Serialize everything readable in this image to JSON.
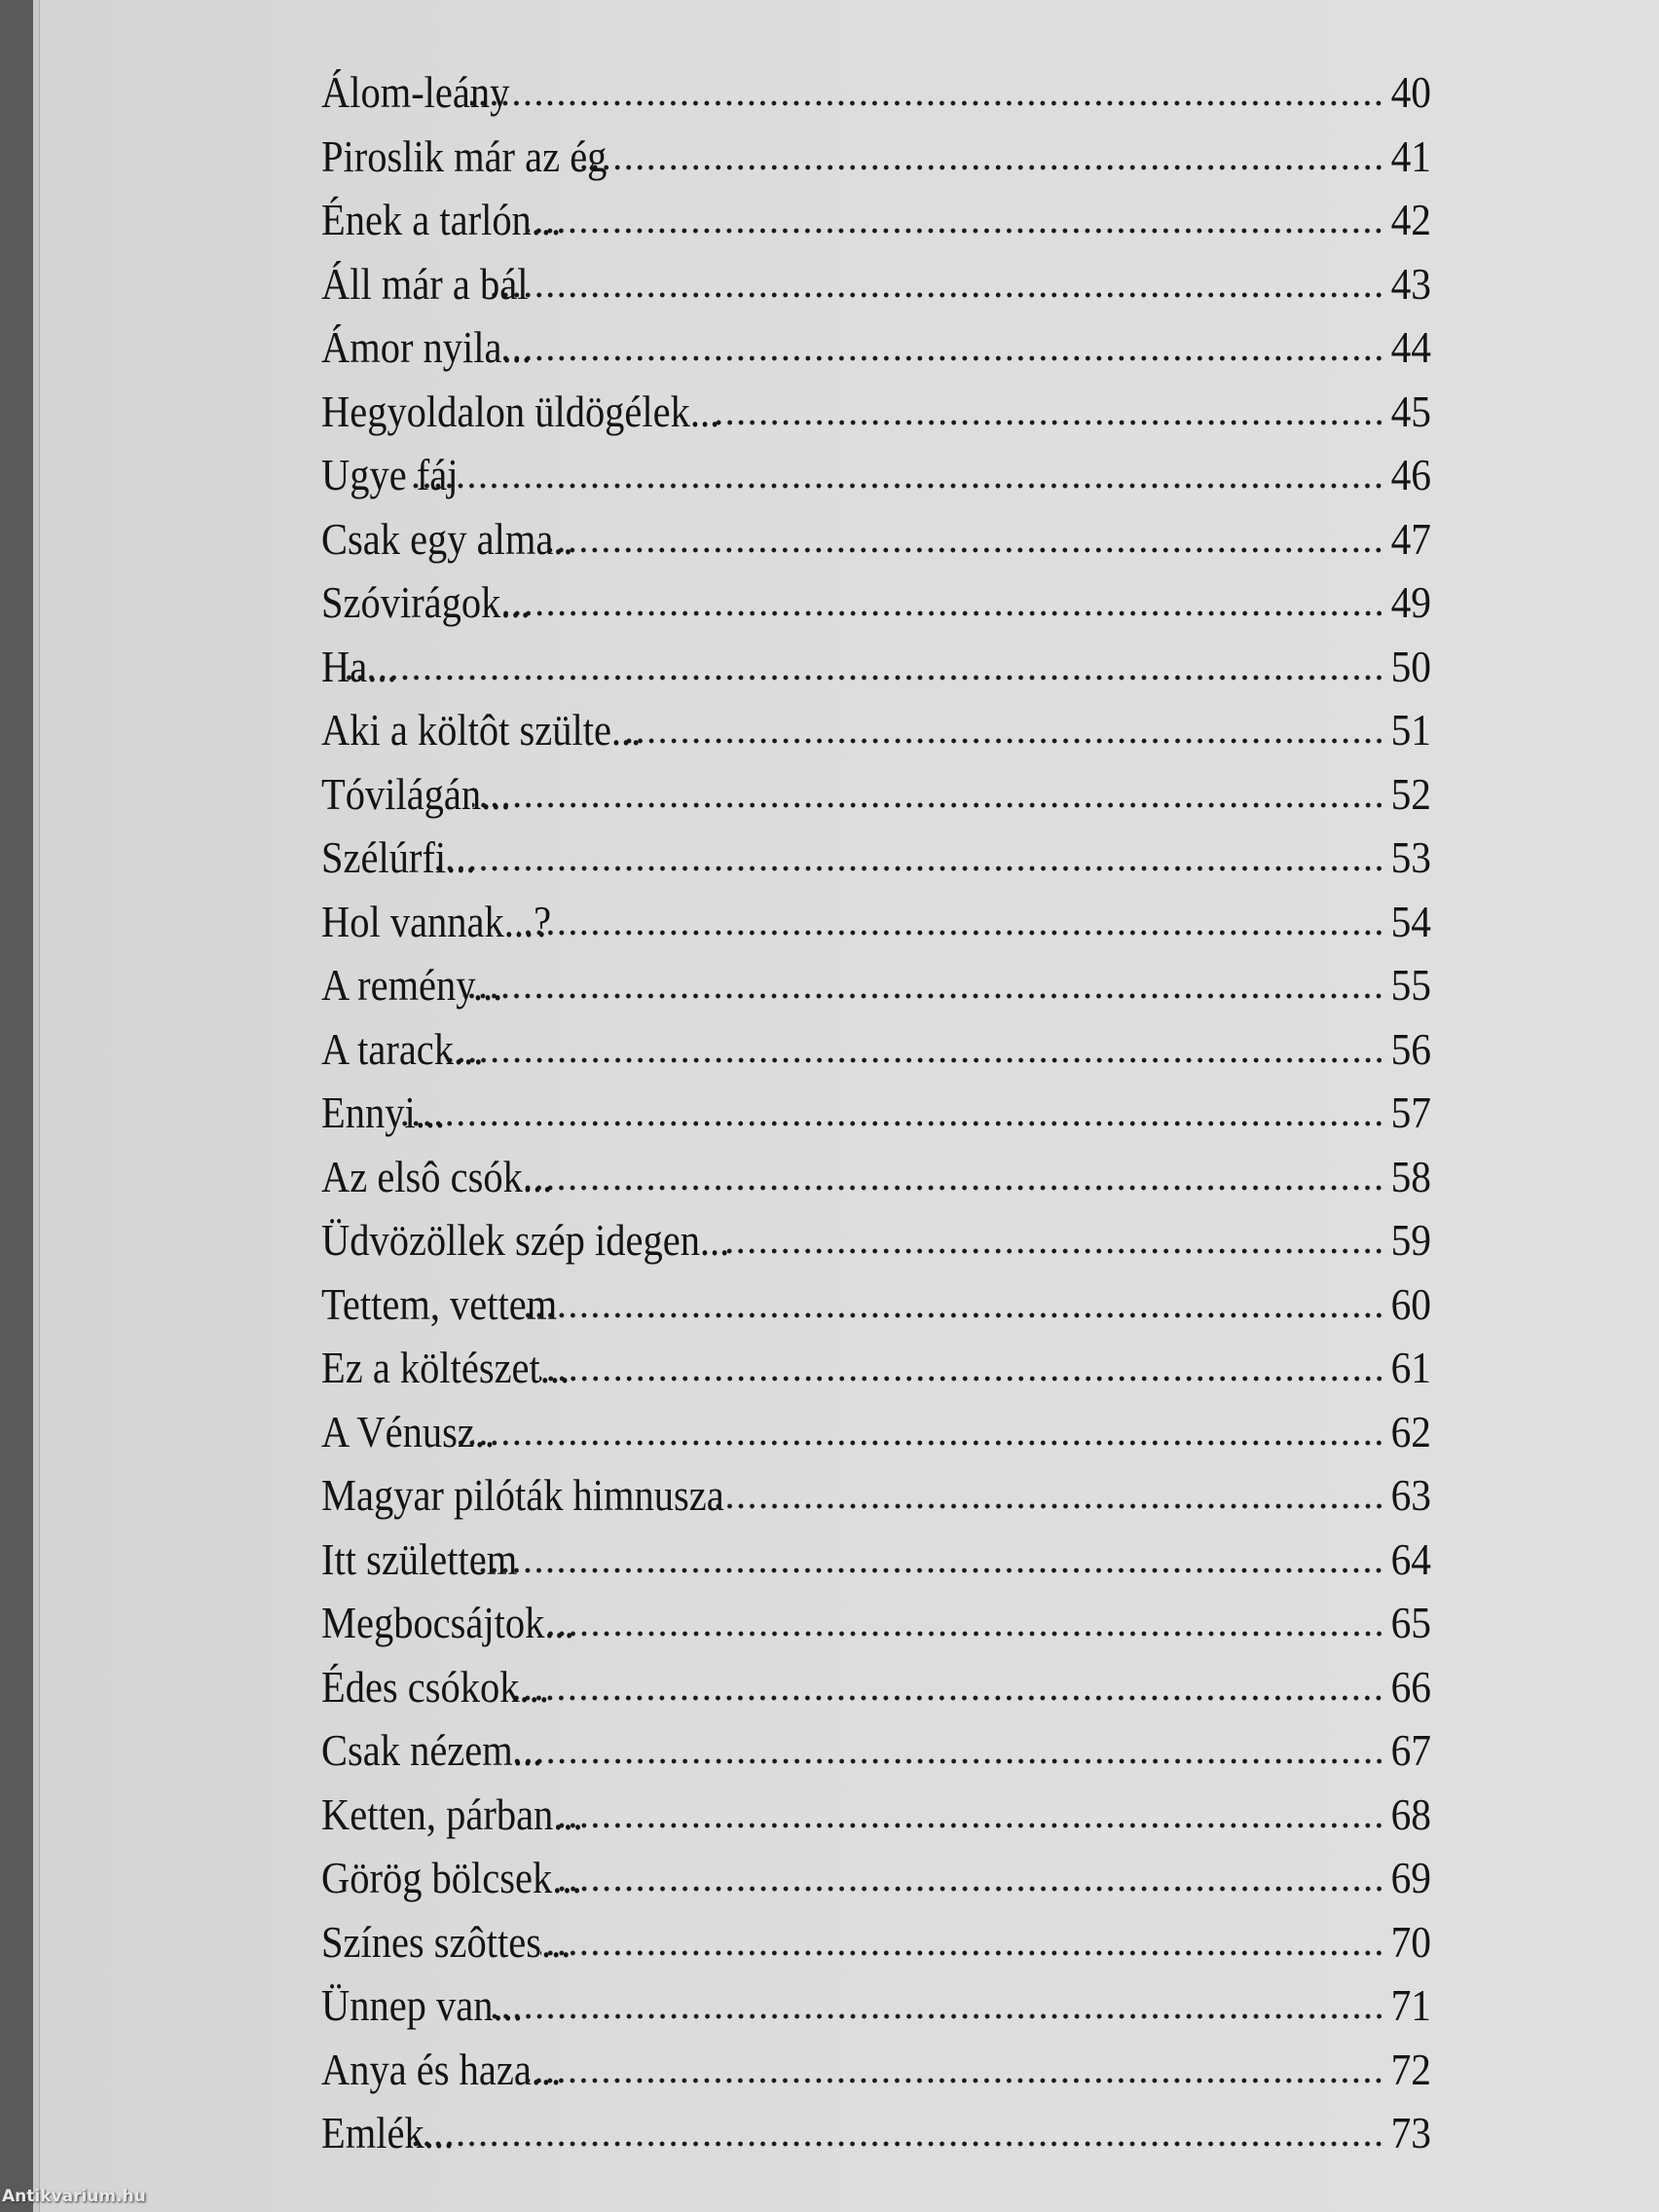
{
  "toc": {
    "entries": [
      {
        "title": "Álom-leány",
        "page": "40"
      },
      {
        "title": "Piroslik már az ég",
        "page": "41"
      },
      {
        "title": "Ének a tarlón...",
        "page": "42"
      },
      {
        "title": "Áll már a bál",
        "page": "43"
      },
      {
        "title": "Ámor nyila...",
        "page": "44"
      },
      {
        "title": "Hegyoldalon üldögélek...",
        "page": "45"
      },
      {
        "title": "Ugye fáj",
        "page": "46"
      },
      {
        "title": "Csak egy alma..",
        "page": "47"
      },
      {
        "title": "Szóvirágok...",
        "page": "49"
      },
      {
        "title": "Ha...",
        "page": "50"
      },
      {
        "title": "Aki a költôt szülte...",
        "page": "51"
      },
      {
        "title": "Tóvilágán...",
        "page": "52"
      },
      {
        "title": "Szélúrfi...",
        "page": "53"
      },
      {
        "title": "Hol vannak...?",
        "page": "54"
      },
      {
        "title": "A remény...",
        "page": "55"
      },
      {
        "title": "A tarack...",
        "page": "56"
      },
      {
        "title": "Ennyi...",
        "page": "57"
      },
      {
        "title": "Az elsô csók...",
        "page": "58"
      },
      {
        "title": "Üdvözöllek szép idegen...",
        "page": "59"
      },
      {
        "title": "Tettem, vettem",
        "page": "60"
      },
      {
        "title": "Ez a költészet...",
        "page": "61"
      },
      {
        "title": "A Vénusz..",
        "page": "62"
      },
      {
        "title": "Magyar pilóták himnusza",
        "page": "63"
      },
      {
        "title": "Itt születtem",
        "page": "64"
      },
      {
        "title": "Megbocsájtok...",
        "page": "65"
      },
      {
        "title": "Édes csókok...",
        "page": "66"
      },
      {
        "title": "Csak nézem...",
        "page": "67"
      },
      {
        "title": "Ketten, párban...",
        "page": "68"
      },
      {
        "title": "Görög bölcsek...",
        "page": "69"
      },
      {
        "title": "Színes szôttes...",
        "page": "70"
      },
      {
        "title": "Ünnep van...",
        "page": "71"
      },
      {
        "title": "Anya és haza...",
        "page": "72"
      },
      {
        "title": "Emlék...",
        "page": "73"
      }
    ]
  },
  "watermark": "Antikvarium.hu"
}
